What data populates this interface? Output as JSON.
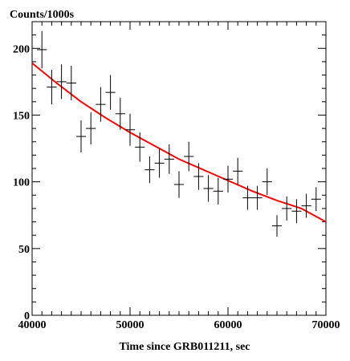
{
  "chart_data": {
    "type": "scatter",
    "title": "",
    "ylabel": "Counts/1000s",
    "xlabel": "Time since GRB011211, sec",
    "xlim": [
      40000,
      70000
    ],
    "ylim": [
      0,
      220
    ],
    "x_ticks": [
      {
        "value": 40000,
        "label": "40000"
      },
      {
        "value": 50000,
        "label": "50000"
      },
      {
        "value": 60000,
        "label": "60000"
      },
      {
        "value": 70000,
        "label": "70000"
      }
    ],
    "y_ticks": [
      {
        "value": 0,
        "label": "0"
      },
      {
        "value": 50,
        "label": "50"
      },
      {
        "value": 100,
        "label": "100"
      },
      {
        "value": 150,
        "label": "150"
      },
      {
        "value": 200,
        "label": "200"
      }
    ],
    "grid": false,
    "points": [
      {
        "x": 41000,
        "y": 199,
        "xerr": 500,
        "yerr": 14
      },
      {
        "x": 42000,
        "y": 171,
        "xerr": 500,
        "yerr": 13
      },
      {
        "x": 43000,
        "y": 175,
        "xerr": 500,
        "yerr": 13
      },
      {
        "x": 44000,
        "y": 174,
        "xerr": 500,
        "yerr": 13
      },
      {
        "x": 45000,
        "y": 134,
        "xerr": 500,
        "yerr": 12
      },
      {
        "x": 46000,
        "y": 140,
        "xerr": 500,
        "yerr": 12
      },
      {
        "x": 47000,
        "y": 158,
        "xerr": 500,
        "yerr": 13
      },
      {
        "x": 48000,
        "y": 167,
        "xerr": 500,
        "yerr": 13
      },
      {
        "x": 49000,
        "y": 151,
        "xerr": 500,
        "yerr": 12
      },
      {
        "x": 50000,
        "y": 139,
        "xerr": 500,
        "yerr": 12
      },
      {
        "x": 51000,
        "y": 126,
        "xerr": 500,
        "yerr": 11
      },
      {
        "x": 52000,
        "y": 109,
        "xerr": 500,
        "yerr": 10
      },
      {
        "x": 53000,
        "y": 114,
        "xerr": 500,
        "yerr": 11
      },
      {
        "x": 54000,
        "y": 117,
        "xerr": 500,
        "yerr": 11
      },
      {
        "x": 55000,
        "y": 98,
        "xerr": 500,
        "yerr": 10
      },
      {
        "x": 56000,
        "y": 119,
        "xerr": 500,
        "yerr": 11
      },
      {
        "x": 57000,
        "y": 104,
        "xerr": 500,
        "yerr": 10
      },
      {
        "x": 58000,
        "y": 95,
        "xerr": 500,
        "yerr": 10
      },
      {
        "x": 59000,
        "y": 93,
        "xerr": 500,
        "yerr": 10
      },
      {
        "x": 60000,
        "y": 102,
        "xerr": 500,
        "yerr": 10
      },
      {
        "x": 61000,
        "y": 108,
        "xerr": 500,
        "yerr": 10
      },
      {
        "x": 62000,
        "y": 88,
        "xerr": 500,
        "yerr": 9
      },
      {
        "x": 63000,
        "y": 88,
        "xerr": 500,
        "yerr": 9
      },
      {
        "x": 64000,
        "y": 100,
        "xerr": 500,
        "yerr": 10
      },
      {
        "x": 65000,
        "y": 67,
        "xerr": 500,
        "yerr": 8
      },
      {
        "x": 66000,
        "y": 80,
        "xerr": 500,
        "yerr": 9
      },
      {
        "x": 67000,
        "y": 78,
        "xerr": 500,
        "yerr": 9
      },
      {
        "x": 68000,
        "y": 82,
        "xerr": 500,
        "yerr": 9
      },
      {
        "x": 69000,
        "y": 87,
        "xerr": 500,
        "yerr": 9
      }
    ],
    "fit_curve": {
      "color": "#ff0000",
      "x": [
        40000,
        42500,
        45000,
        47500,
        50000,
        52500,
        55000,
        57500,
        60000,
        62500,
        65000,
        67500,
        70000
      ],
      "y": [
        189,
        174,
        160,
        148,
        137,
        127,
        117,
        109,
        101,
        93,
        86,
        80,
        70
      ]
    },
    "data_color": "#000000"
  }
}
